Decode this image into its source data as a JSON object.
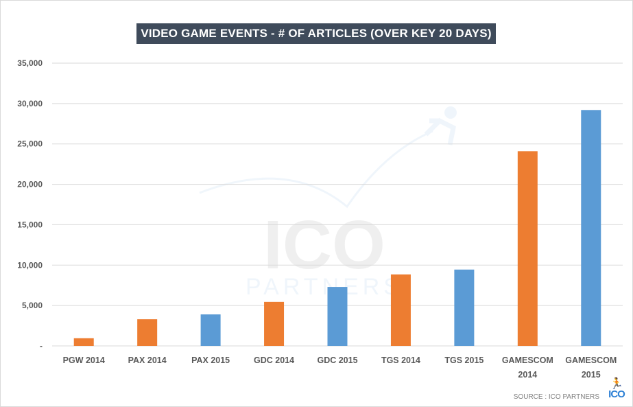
{
  "chart_data": {
    "type": "bar",
    "title": "VIDEO GAME EVENTS - # OF ARTICLES (OVER KEY 20 DAYS)",
    "categories": [
      [
        "PGW 2014"
      ],
      [
        "PAX 2014"
      ],
      [
        "PAX 2015"
      ],
      [
        "GDC 2014"
      ],
      [
        "GDC 2015"
      ],
      [
        "TGS 2014"
      ],
      [
        "TGS 2015"
      ],
      [
        "GAMESCOM",
        "2014"
      ],
      [
        "GAMESCOM",
        "2015"
      ]
    ],
    "values": [
      950,
      3300,
      3900,
      5450,
      7300,
      8850,
      9450,
      24100,
      29200
    ],
    "bar_colors": [
      "#ed7d31",
      "#ed7d31",
      "#5b9bd5",
      "#ed7d31",
      "#5b9bd5",
      "#ed7d31",
      "#5b9bd5",
      "#ed7d31",
      "#5b9bd5"
    ],
    "ylim": [
      0,
      35000
    ],
    "yticks": [
      0,
      5000,
      10000,
      15000,
      20000,
      25000,
      30000,
      35000
    ],
    "ytick_labels": [
      "-",
      "5,000",
      "10,000",
      "15,000",
      "20,000",
      "25,000",
      "30,000",
      "35,000"
    ],
    "grid": true,
    "xlabel": "",
    "ylabel": ""
  },
  "source": "SOURCE : ICO PARTNERS",
  "logo": {
    "text": "ICO",
    "watermark_line1": "ICO",
    "watermark_line2": "PARTNERS",
    "icon": "running-man-icon"
  },
  "colors": {
    "title_bg": "#3f4b5b",
    "orange": "#ed7d31",
    "blue": "#5b9bd5"
  }
}
